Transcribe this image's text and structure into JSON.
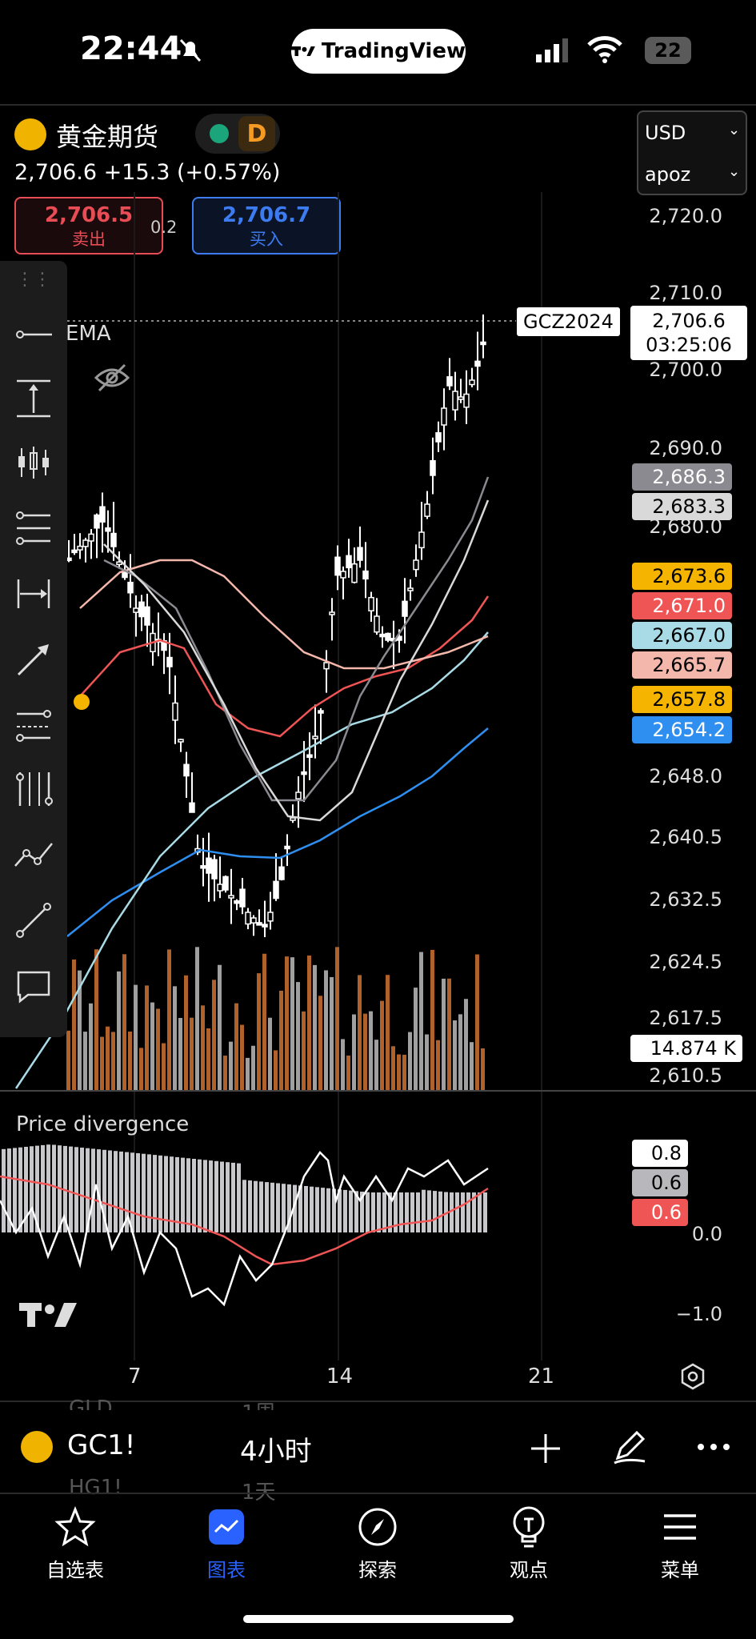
{
  "status_bar": {
    "time": "22:44",
    "app_pill": "TradingView",
    "battery": "22"
  },
  "header": {
    "symbol_name": "黄金期货",
    "interval_badge": "D",
    "quote_line": "2,706.6 +15.3 (+0.57%)",
    "sell_price": "2,706.5",
    "sell_label": "卖出",
    "spread": "0.2",
    "buy_price": "2,706.7",
    "buy_label": "买入",
    "currency": "USD",
    "account": "apoz"
  },
  "chart": {
    "indicator_label": "EMA",
    "price_axis": [
      "2,720.0",
      "2,710.0",
      "2,700.0",
      "2,690.0",
      "2,680.0",
      "2,648.0",
      "2,640.5",
      "2,632.5",
      "2,624.5",
      "2,617.5",
      "2,610.5"
    ],
    "contract_label": "GCZ2024",
    "last_price": "2,706.6",
    "countdown": "03:25:06",
    "ma_tags": [
      {
        "value": "2,686.3",
        "bg": "#8a8a90",
        "fg": "#ffffff"
      },
      {
        "value": "2,683.3",
        "bg": "#d9d9d9",
        "fg": "#000000"
      },
      {
        "value": "2,673.6",
        "bg": "#f5b400",
        "fg": "#000000"
      },
      {
        "value": "2,671.0",
        "bg": "#f05555",
        "fg": "#ffffff"
      },
      {
        "value": "2,667.0",
        "bg": "#a8dbe6",
        "fg": "#000000"
      },
      {
        "value": "2,665.7",
        "bg": "#f4b7ab",
        "fg": "#000000"
      },
      {
        "value": "2,657.8",
        "bg": "#f5b400",
        "fg": "#000000"
      },
      {
        "value": "2,654.2",
        "bg": "#2f8ff0",
        "fg": "#ffffff"
      }
    ],
    "volume_tag": "14.874 K",
    "oscillator": {
      "title": "Price divergence",
      "axis": [
        "0.0",
        "−1.0"
      ],
      "tags": [
        {
          "value": "0.8",
          "bg": "#ffffff",
          "fg": "#000000"
        },
        {
          "value": "0.6",
          "bg": "#b8b8bc",
          "fg": "#000000"
        },
        {
          "value": "0.6",
          "bg": "#f05555",
          "fg": "#ffffff"
        }
      ]
    },
    "time_axis": [
      "7",
      "14",
      "21"
    ]
  },
  "symbol_bar": {
    "symbol": "GC1!",
    "interval": "4小时",
    "ghost_above": [
      "GLD",
      "1周"
    ],
    "ghost_below": [
      "HG1!",
      "1天"
    ]
  },
  "bottom_nav": [
    {
      "label": "自选表",
      "icon": "star-icon"
    },
    {
      "label": "图表",
      "icon": "chart-icon"
    },
    {
      "label": "探索",
      "icon": "compass-icon"
    },
    {
      "label": "观点",
      "icon": "lightbulb-icon"
    },
    {
      "label": "菜单",
      "icon": "menu-icon"
    }
  ],
  "colors": {
    "accent": "#2962ff",
    "sell": "#e84c55",
    "buy": "#3d7cf0",
    "volume_up": "#a0a0a0",
    "volume_down": "#b0622a"
  }
}
